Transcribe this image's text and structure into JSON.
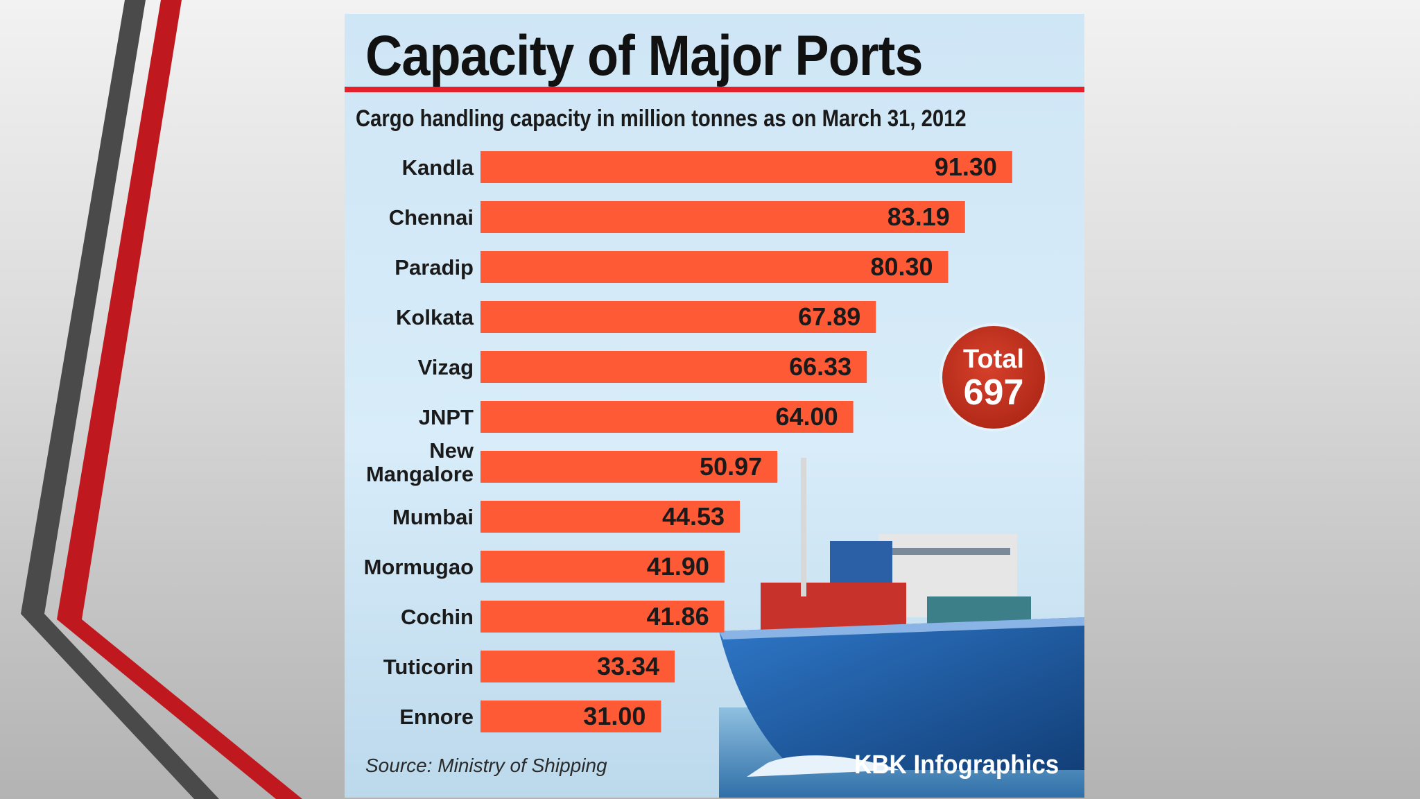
{
  "colors": {
    "bar": "#ff5a36",
    "title_rule": "#e4212a",
    "badge": "#b32a19",
    "card_background": "#d8ecf9"
  },
  "chart_data": {
    "type": "bar",
    "orientation": "horizontal",
    "title": "Capacity of Major Ports",
    "subtitle": "Cargo handling capacity in million tonnes as on March 31, 2012",
    "categories": [
      "Kandla",
      "Chennai",
      "Paradip",
      "Kolkata",
      "Vizag",
      "JNPT",
      "New Mangalore",
      "Mumbai",
      "Mormugao",
      "Cochin",
      "Tuticorin",
      "Ennore"
    ],
    "category_lines": [
      [
        "Kandla"
      ],
      [
        "Chennai"
      ],
      [
        "Paradip"
      ],
      [
        "Kolkata"
      ],
      [
        "Vizag"
      ],
      [
        "JNPT"
      ],
      [
        "New",
        "Mangalore"
      ],
      [
        "Mumbai"
      ],
      [
        "Mormugao"
      ],
      [
        "Cochin"
      ],
      [
        "Tuticorin"
      ],
      [
        "Ennore"
      ]
    ],
    "values": [
      91.3,
      83.19,
      80.3,
      67.89,
      66.33,
      64.0,
      50.97,
      44.53,
      41.9,
      41.86,
      33.34,
      31.0
    ],
    "value_labels": [
      "91.30",
      "83.19",
      "80.30",
      "67.89",
      "66.33",
      "64.00",
      "50.97",
      "44.53",
      "41.90",
      "41.86",
      "33.34",
      "31.00"
    ],
    "unit": "million tonnes",
    "grid": false,
    "legend": "none",
    "annotation": {
      "label": "Total",
      "value": "697"
    },
    "source": "Source: Ministry of Shipping",
    "credit": "KBK Infographics"
  }
}
